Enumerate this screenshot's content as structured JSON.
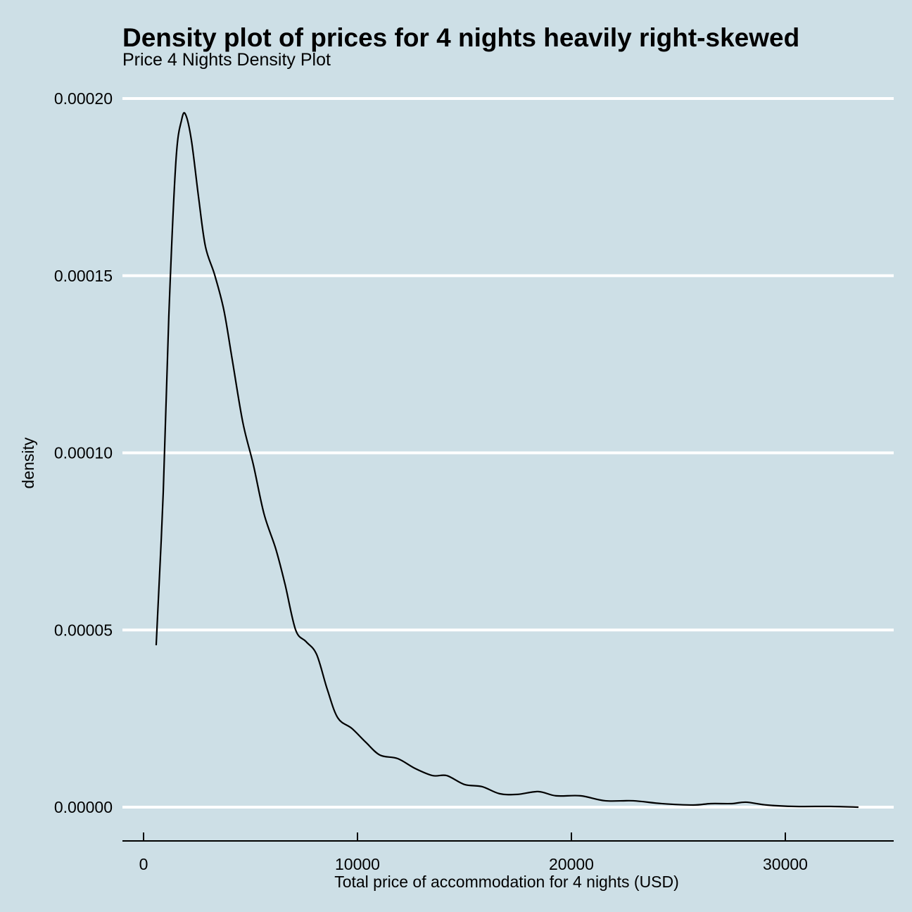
{
  "chart_data": {
    "type": "line",
    "title": "Density plot of prices for 4 nights heavily right-skewed",
    "subtitle": "Price 4 Nights Density Plot",
    "xlabel": "Total price of accommodation for 4 nights (USD)",
    "ylabel": "density",
    "xlim": [
      -1000,
      35000
    ],
    "ylim": [
      -9.5e-06,
      0.0002
    ],
    "xticks": [
      0,
      10000,
      20000,
      30000
    ],
    "xtick_labels": [
      "0",
      "10000",
      "20000",
      "30000"
    ],
    "yticks": [
      0,
      5e-05,
      0.0001,
      0.00015,
      0.0002
    ],
    "ytick_labels": [
      "0.00000",
      "0.00005",
      "0.00010",
      "0.00015",
      "0.00020"
    ],
    "grid": "horizontal major",
    "colors": {
      "background": "#cddfe6",
      "grid": "#ffffff",
      "line": "#000000"
    },
    "series": [
      {
        "name": "density",
        "x": [
          590,
          920,
          1180,
          1510,
          1780,
          1970,
          2240,
          2570,
          2890,
          3320,
          3750,
          4140,
          4640,
          5130,
          5630,
          6180,
          6610,
          7110,
          7600,
          8090,
          8590,
          9080,
          9740,
          10390,
          11050,
          11880,
          12700,
          13520,
          14180,
          15000,
          15820,
          16640,
          17470,
          18450,
          19280,
          20430,
          21580,
          22890,
          24210,
          25690,
          26510,
          27500,
          28160,
          29140,
          30460,
          32110,
          33420
        ],
        "y": [
          4.57e-05,
          8.88e-05,
          0.0001384,
          0.0001821,
          0.000194,
          0.0001954,
          0.0001881,
          0.0001722,
          0.0001583,
          0.0001503,
          0.0001404,
          0.0001265,
          0.0001086,
          9.67e-05,
          8.28e-05,
          7.29e-05,
          6.3e-05,
          5e-05,
          4.67e-05,
          4.31e-05,
          3.32e-05,
          2.52e-05,
          2.22e-05,
          1.83e-05,
          1.47e-05,
          1.37e-05,
          1.09e-05,
          8.9e-06,
          8.9e-06,
          6.4e-06,
          5.8e-06,
          3.8e-06,
          3.6e-06,
          4.4e-06,
          3.2e-06,
          3.2e-06,
          1.8e-06,
          1.8e-06,
          1e-06,
          6e-07,
          1e-06,
          1e-06,
          1.4e-06,
          6e-07,
          2e-07,
          2e-07,
          0
        ]
      }
    ]
  }
}
